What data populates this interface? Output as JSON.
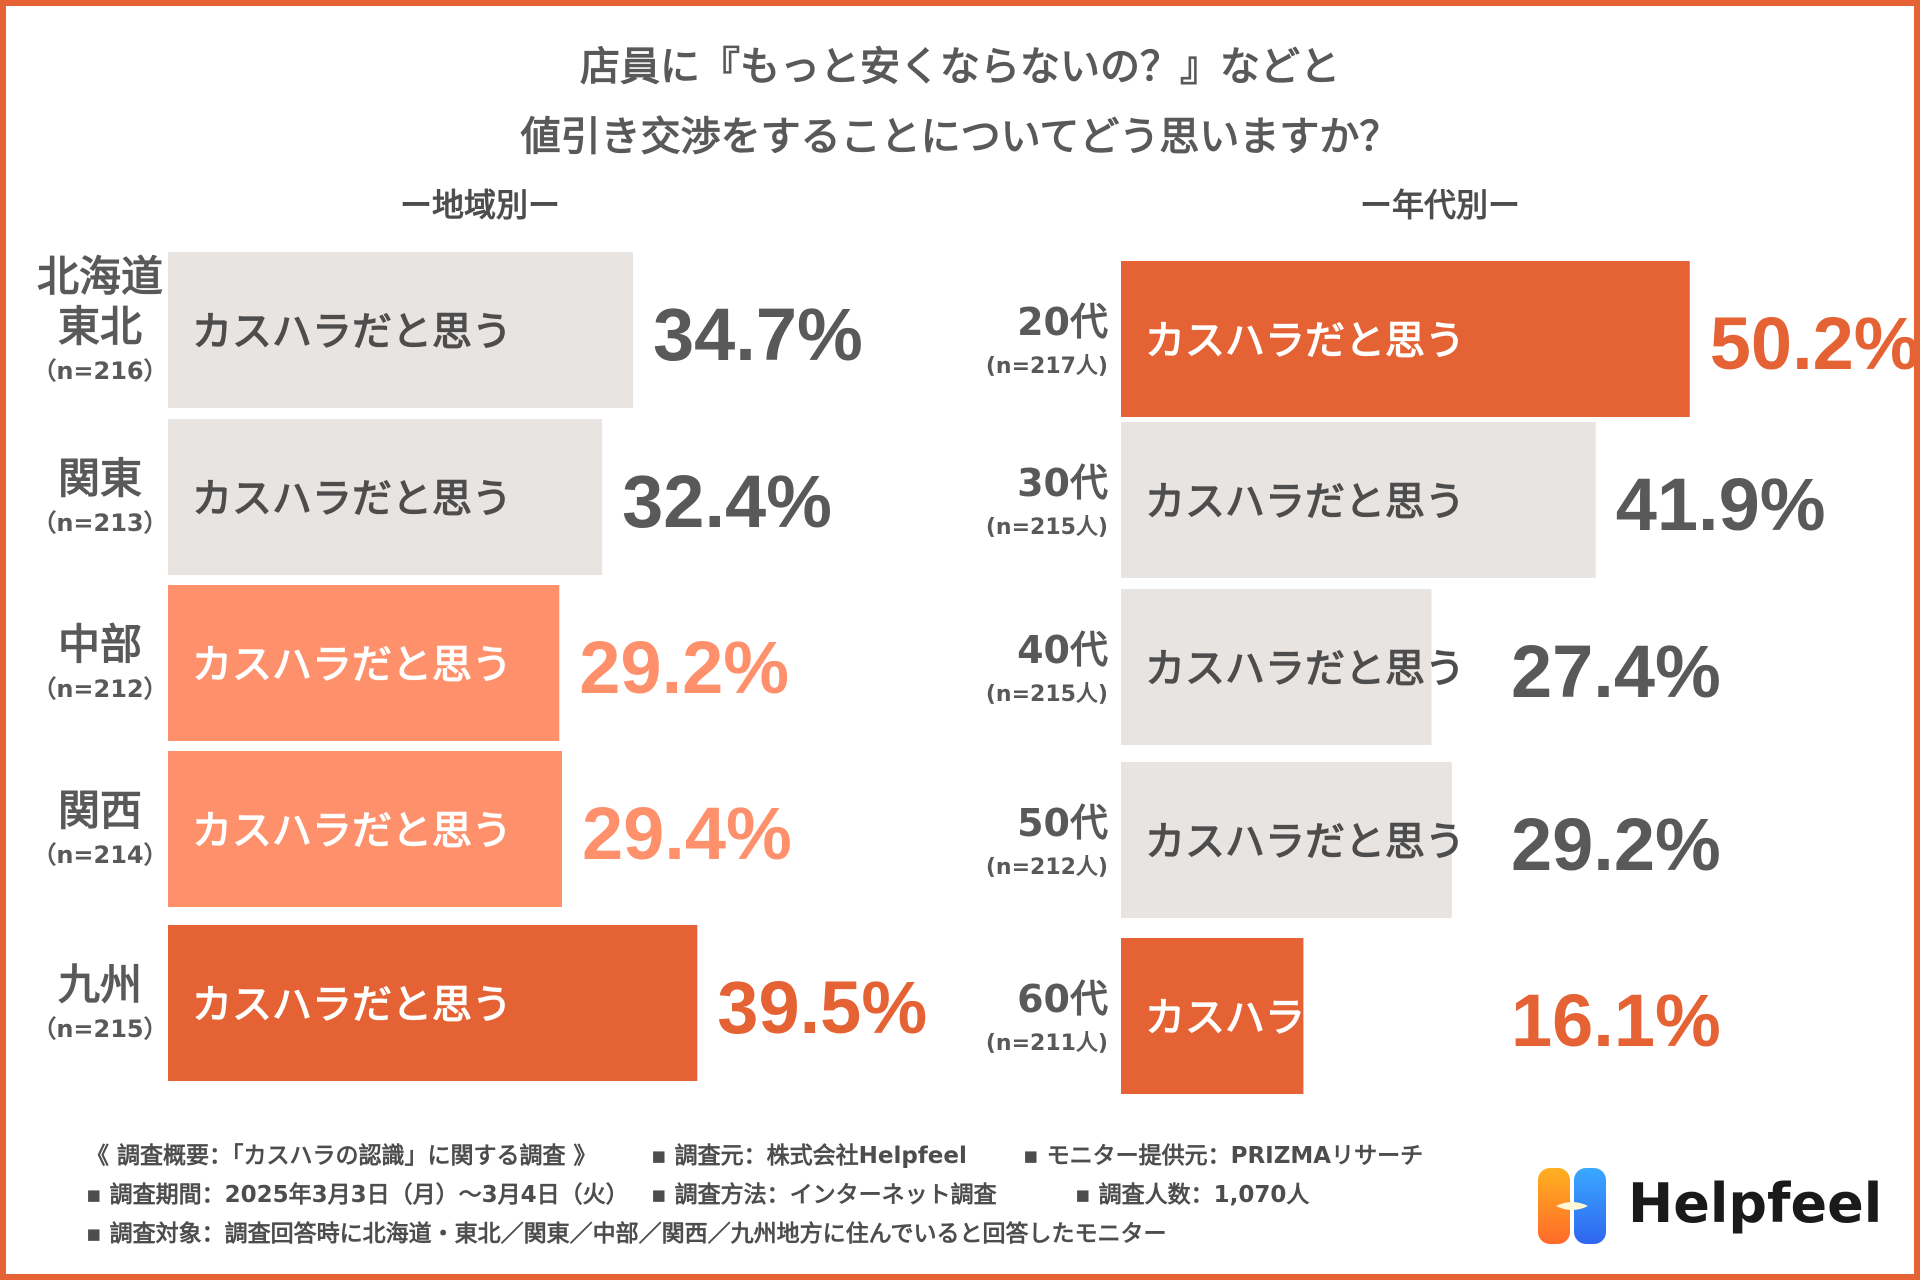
{
  "title": {
    "line1": "店員に『もっと安くならないの？』などと",
    "line2": "値引き交渉をすることについてどう思いますか？"
  },
  "colors": {
    "gray_bar": "#e8e4e2",
    "light_orange": "#fe906c",
    "dark_orange": "#e46233",
    "gray_text": "#595959",
    "frame": "#e46233"
  },
  "chart_data": [
    {
      "type": "bar",
      "orientation": "horizontal",
      "title": "ー地域別ー",
      "bar_label": "カスハラだと思う",
      "unit": "%",
      "categories": [
        {
          "name": "北海道\n東北",
          "n": "（n=216）"
        },
        {
          "name": "関東",
          "n": "（n=213）"
        },
        {
          "name": "中部",
          "n": "（n=212）"
        },
        {
          "name": "関西",
          "n": "（n=214）"
        },
        {
          "name": "九州",
          "n": "（n=215）"
        }
      ],
      "values": [
        34.7,
        32.4,
        29.2,
        29.4,
        39.5
      ],
      "value_labels": [
        "34.7%",
        "32.4%",
        "29.2%",
        "29.4%",
        "39.5%"
      ],
      "styles": [
        "gray",
        "gray",
        "light",
        "light",
        "dark"
      ],
      "xlim": [
        0,
        100
      ]
    },
    {
      "type": "bar",
      "orientation": "horizontal",
      "title": "ー年代別ー",
      "bar_label": "カスハラだと思う",
      "unit": "%",
      "categories": [
        {
          "name": "20代",
          "n": "(n=217人)"
        },
        {
          "name": "30代",
          "n": "(n=215人)"
        },
        {
          "name": "40代",
          "n": "(n=215人)"
        },
        {
          "name": "50代",
          "n": "(n=212人)"
        },
        {
          "name": "60代",
          "n": "(n=211人)"
        }
      ],
      "values": [
        50.2,
        41.9,
        27.4,
        29.2,
        16.1
      ],
      "value_labels": [
        "50.2%",
        "41.9%",
        "27.4%",
        "29.2%",
        "16.1%"
      ],
      "styles": [
        "dark",
        "gray",
        "gray",
        "gray",
        "dark"
      ],
      "xlim": [
        0,
        100
      ]
    }
  ],
  "footer": {
    "line1": [
      "《 調査概要：「カスハラの認識」に関する調査 》",
      "▪ 調査元：株式会社Helpfeel",
      "▪ モニター提供元：PRIZMAリサーチ"
    ],
    "line2": [
      "▪ 調査期間：2025年3月3日（月）〜3月4日（火）",
      "▪ 調査方法：インターネット調査",
      "▪ 調査人数：1,070人"
    ],
    "line3": [
      "▪ 調査対象：調査回答時に北海道・東北／関東／中部／関西／九州地方に住んでいると回答したモニター"
    ]
  },
  "logo": {
    "text": "Helpfeel",
    "icon": "helpfeel-logo-icon"
  }
}
